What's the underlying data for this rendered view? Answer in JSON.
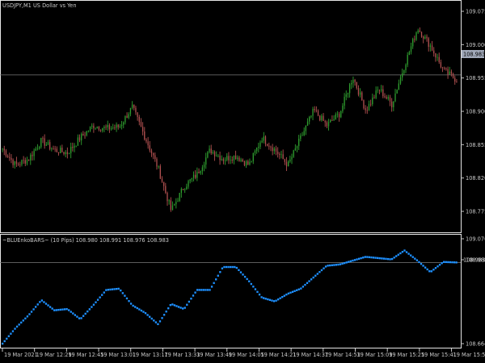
{
  "window": {
    "main_title": "USDJPY,M1  US Dollar vs Yen",
    "indicator_title": "~BLUEnkoBARS~ (10 Pips) 108.980 108.991 108.976 108.983"
  },
  "colors": {
    "background": "#000000",
    "frame": "#e6e6e6",
    "candle_up": "#2f9e2f",
    "candle_down": "#b05050",
    "bid_line": "#7a7a7a",
    "price_tag_bg": "#a0a8b8",
    "renko": "#1e90ff",
    "axis_text": "#c8c8c8"
  },
  "main_axis": {
    "ticks": [
      "109.075",
      "109.000",
      "108.955",
      "108.900",
      "108.855",
      "108.820",
      "108.775"
    ],
    "current_price": "108.983"
  },
  "indicator_axis": {
    "ticks": [
      "109.076",
      "108.983",
      "108.664"
    ],
    "current_price": "108.983"
  },
  "time_axis": {
    "labels": [
      "19 Mar 2021",
      "19 Mar 12:29",
      "19 Mar 12:45",
      "19 Mar 13:01",
      "19 Mar 13:17",
      "19 Mar 13:33",
      "19 Mar 13:49",
      "19 Mar 14:05",
      "19 Mar 14:21",
      "19 Mar 14:37",
      "19 Mar 14:53",
      "19 Mar 15:09",
      "19 Mar 15:25",
      "19 Mar 15:41",
      "19 Mar 15:57"
    ]
  },
  "chart_data": [
    {
      "type": "candlestick",
      "title": "USDJPY,M1  US Dollar vs Yen",
      "ylim": [
        108.73,
        109.09
      ],
      "x": [
        "19 Mar 2021",
        "19 Mar 12:29",
        "19 Mar 12:45",
        "19 Mar 13:01",
        "19 Mar 13:17",
        "19 Mar 13:33",
        "19 Mar 13:49",
        "19 Mar 14:05",
        "19 Mar 14:21",
        "19 Mar 14:37",
        "19 Mar 14:53",
        "19 Mar 15:09",
        "19 Mar 15:25",
        "19 Mar 15:41",
        "19 Mar 15:57"
      ],
      "close_path": [
        108.862,
        108.835,
        108.845,
        108.875,
        108.86,
        108.855,
        108.88,
        108.9,
        108.895,
        108.898,
        108.93,
        108.88,
        108.83,
        108.76,
        108.8,
        108.82,
        108.86,
        108.845,
        108.85,
        108.835,
        108.88,
        108.86,
        108.835,
        108.88,
        108.925,
        108.9,
        108.92,
        108.98,
        108.925,
        108.96,
        108.935,
        109.0,
        109.06,
        109.03,
        108.99,
        108.975
      ],
      "current_price": 108.983
    },
    {
      "type": "line",
      "title": "~BLUEnkoBARS~ (10 Pips) 108.980 108.991 108.976 108.983",
      "ylim": [
        108.664,
        109.076
      ],
      "series": [
        {
          "name": "~BLUEnkoBARS~ (10 Pips)",
          "values": [
            108.664,
            108.725,
            108.775,
            108.835,
            108.795,
            108.8,
            108.76,
            108.815,
            108.875,
            108.88,
            108.815,
            108.785,
            108.74,
            108.82,
            108.8,
            108.875,
            108.875,
            108.965,
            108.965,
            108.91,
            108.845,
            108.83,
            108.86,
            108.88,
            108.925,
            108.97,
            108.975,
            108.99,
            109.005,
            109.0,
            108.995,
            109.03,
            108.99,
            108.945,
            108.985,
            108.983
          ]
        }
      ],
      "current_price": 108.983
    }
  ]
}
